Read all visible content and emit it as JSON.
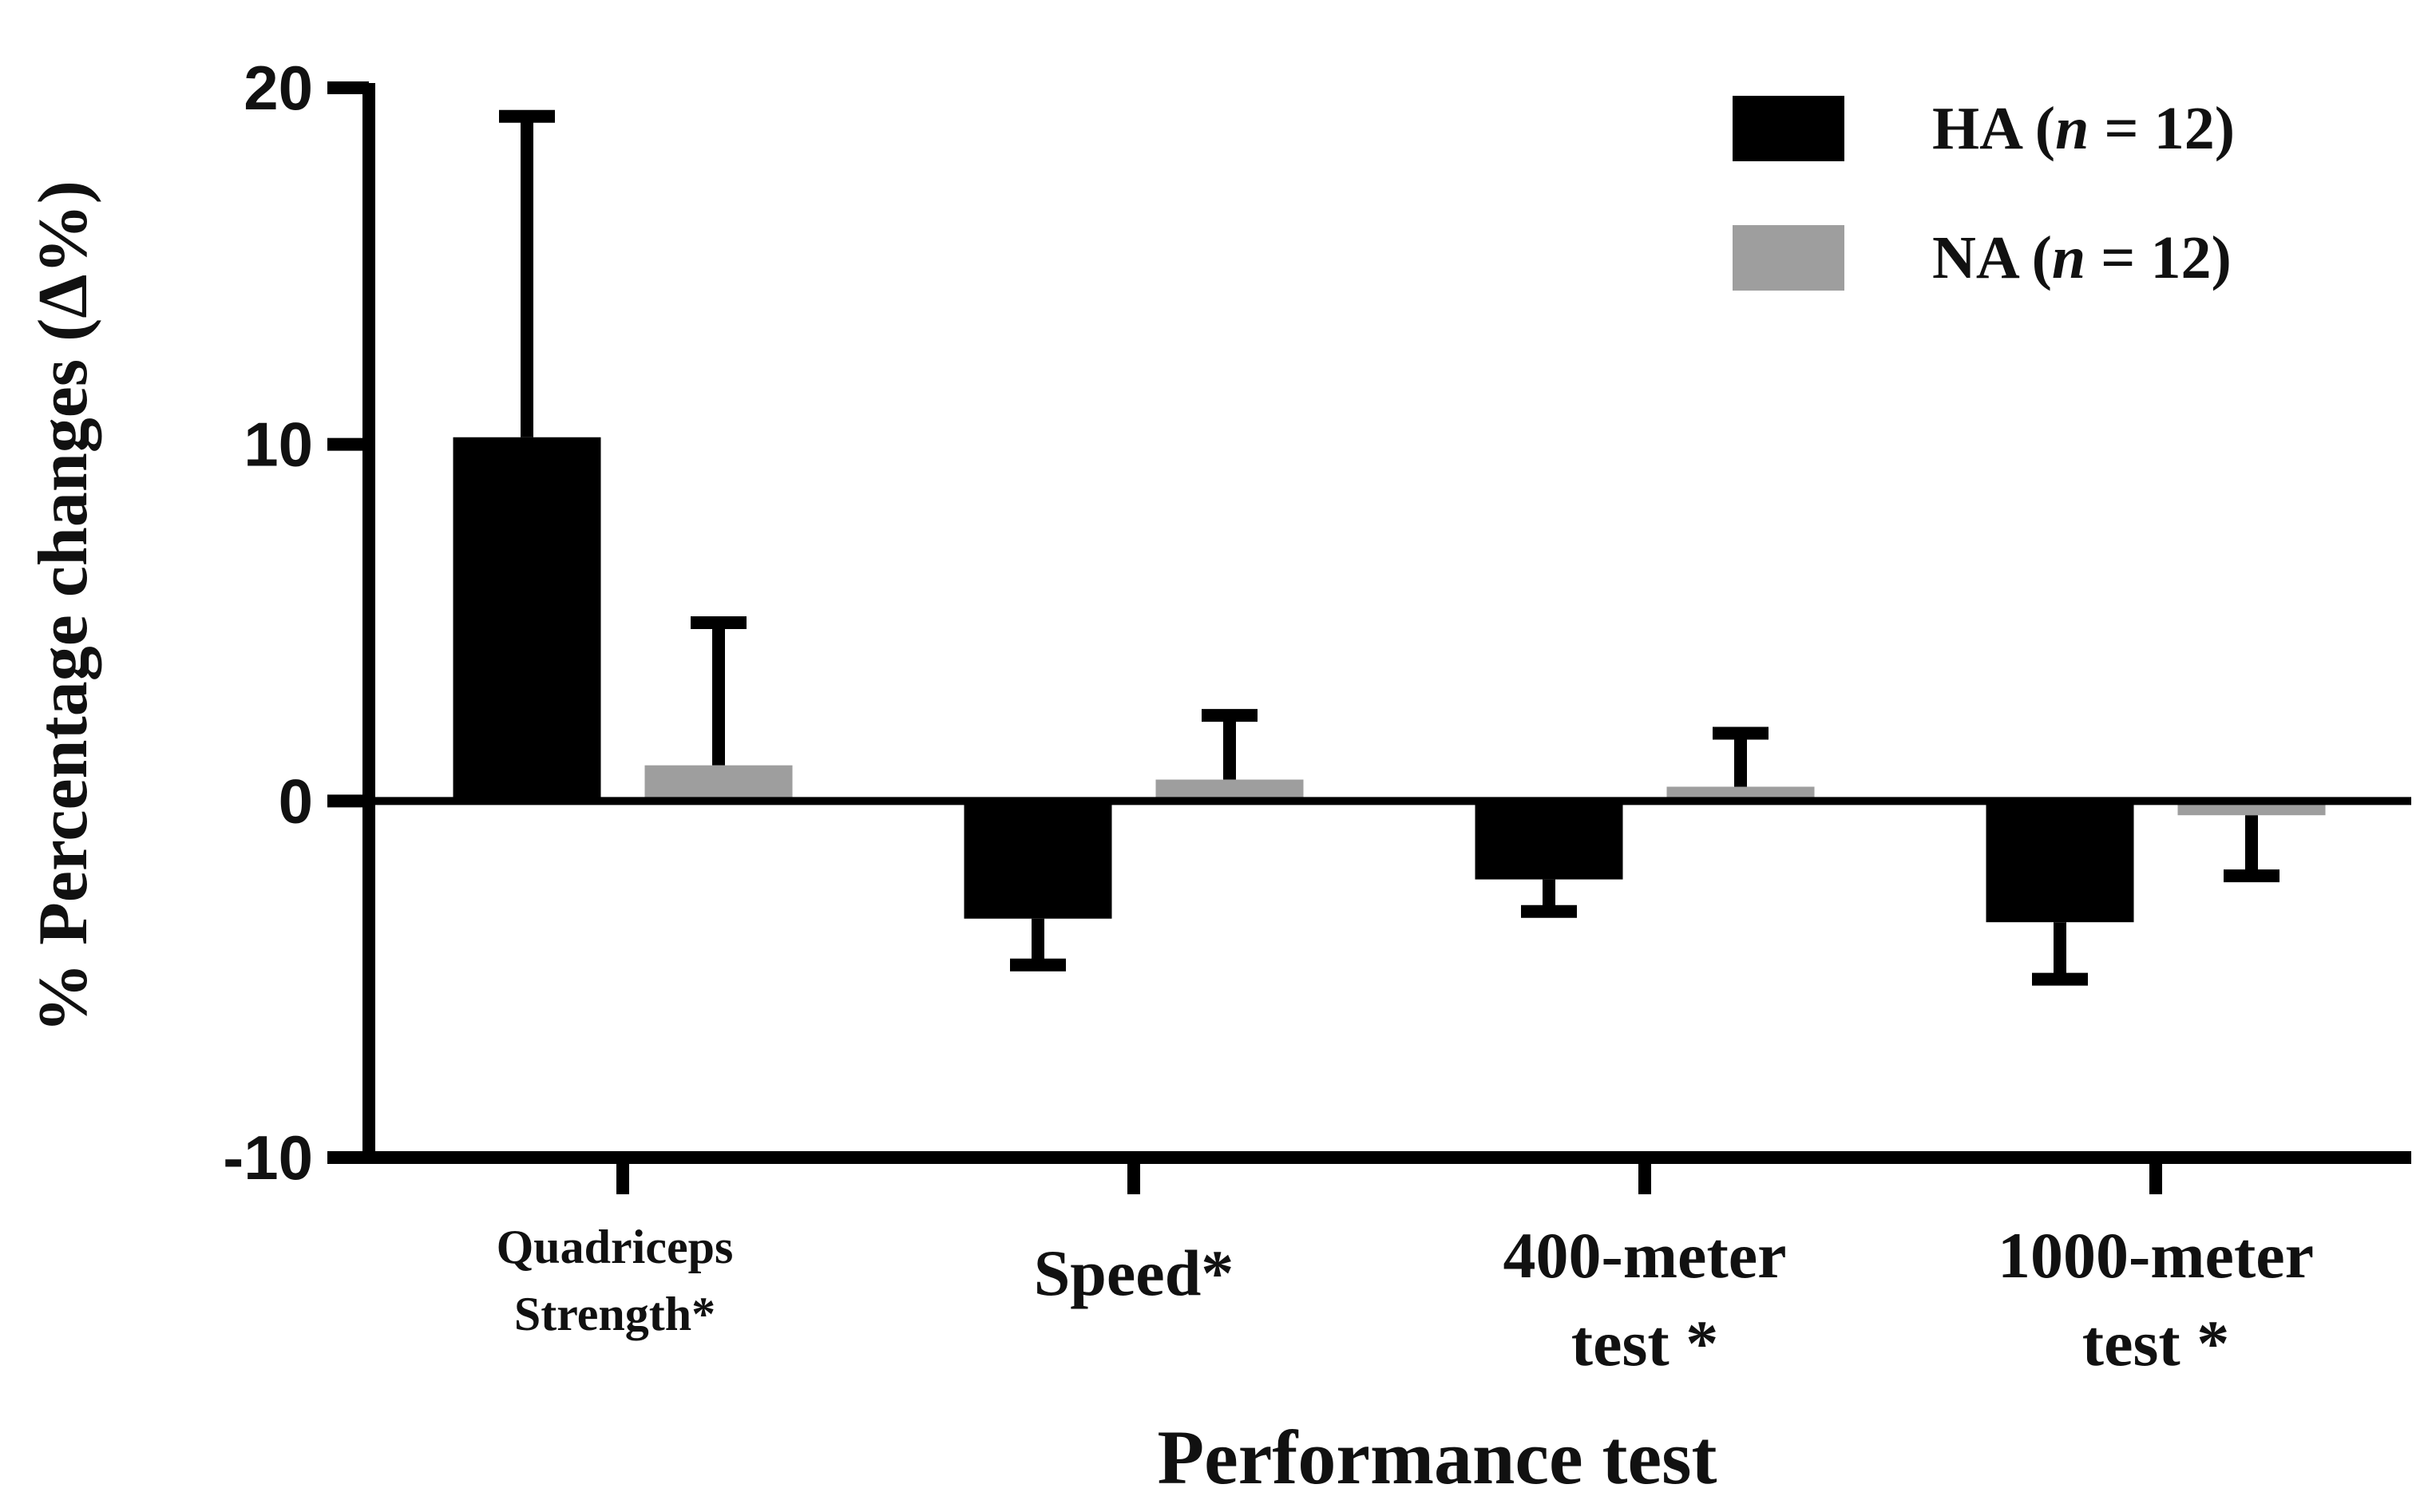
{
  "chart_data": {
    "type": "bar",
    "title": "",
    "xlabel": "Performance test",
    "ylabel": "% Percentage changes (Δ%)",
    "ylim": [
      -10,
      20
    ],
    "yticks": [
      "20",
      "10",
      "0",
      "-10"
    ],
    "ytick_values": [
      20,
      10,
      0,
      -10
    ],
    "grid": false,
    "legend_position": "top-right",
    "categories": [
      [
        "Quadriceps",
        "Strength*"
      ],
      [
        "Speed*"
      ],
      [
        "400-meter",
        "test *"
      ],
      [
        "1000-meter",
        "test *"
      ]
    ],
    "series": [
      {
        "name": "HA",
        "n_label": "n",
        "n_rest": " = 12)",
        "color": "#000000",
        "values": [
          10.2,
          -3.3,
          -2.2,
          -3.4
        ],
        "errors": [
          9.0,
          1.3,
          0.9,
          1.6
        ]
      },
      {
        "name": "NA",
        "n_label": "n",
        "n_rest": " = 12)",
        "color": "#9e9e9e",
        "values": [
          1.0,
          0.6,
          0.4,
          -0.4
        ],
        "errors": [
          4.0,
          1.8,
          1.5,
          1.7
        ]
      }
    ]
  }
}
